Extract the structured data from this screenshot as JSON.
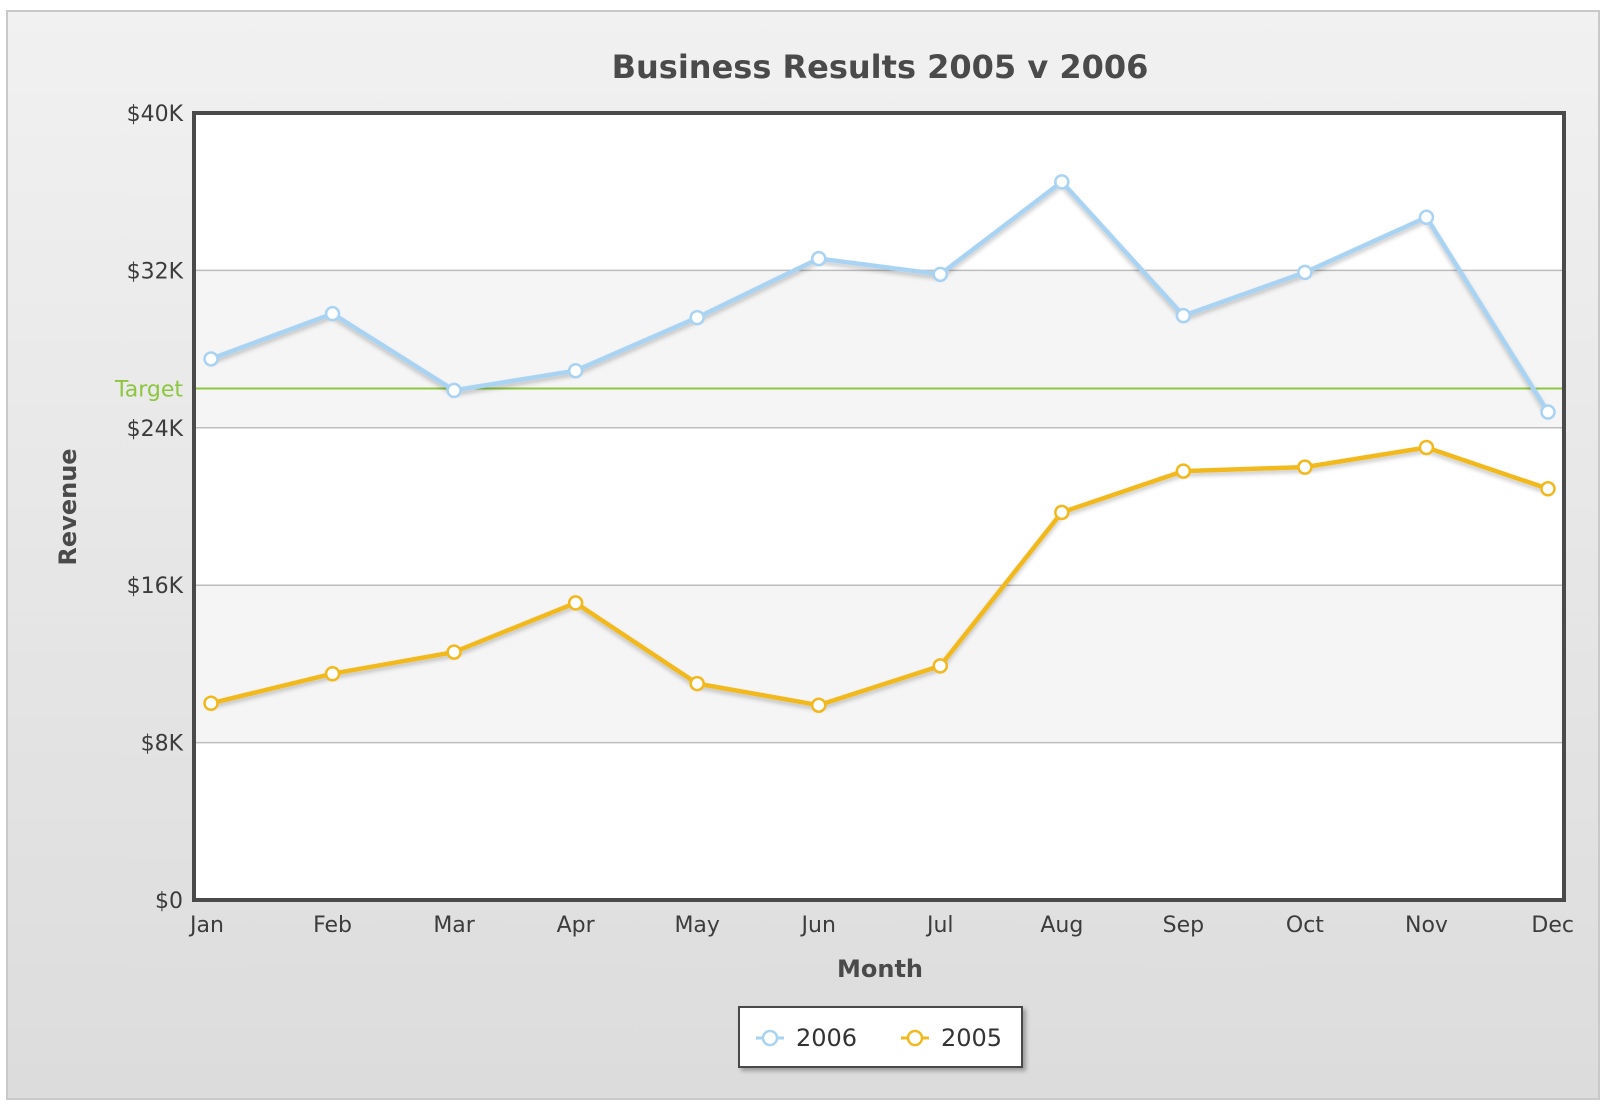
{
  "chart_data": {
    "type": "line",
    "title": "Business Results 2005 v 2006",
    "xlabel": "Month",
    "ylabel": "Revenue",
    "categories": [
      "Jan",
      "Feb",
      "Mar",
      "Apr",
      "May",
      "Jun",
      "Jul",
      "Aug",
      "Sep",
      "Oct",
      "Nov",
      "Dec"
    ],
    "ylim": [
      0,
      40000
    ],
    "yticks": [
      {
        "value": 0,
        "label": "$0"
      },
      {
        "value": 8000,
        "label": "$8K"
      },
      {
        "value": 16000,
        "label": "$16K"
      },
      {
        "value": 24000,
        "label": "$24K"
      },
      {
        "value": 32000,
        "label": "$32K"
      },
      {
        "value": 40000,
        "label": "$40K"
      }
    ],
    "series": [
      {
        "name": "2006",
        "color": "#a9d3f2",
        "values": [
          27500,
          29800,
          25900,
          26900,
          29600,
          32600,
          31800,
          36500,
          29700,
          31900,
          34700,
          24800
        ]
      },
      {
        "name": "2005",
        "color": "#f2b91e",
        "values": [
          10000,
          11500,
          12600,
          15100,
          11000,
          9900,
          11900,
          19700,
          21800,
          22000,
          23000,
          20900
        ]
      }
    ],
    "reference_line": {
      "label": "Target",
      "value": 26000,
      "color": "#8dc63f"
    },
    "grid": true,
    "alternating_bands": true,
    "legend_position": "bottom-center"
  }
}
